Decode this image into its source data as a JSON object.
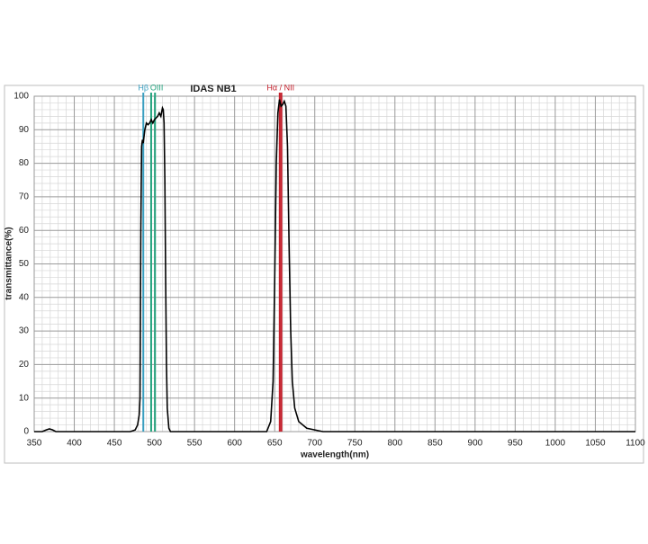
{
  "chart_data": {
    "type": "line",
    "title": "IDAS  NB1",
    "x_label": "wavelength(nm)",
    "y_label": "transmittance(%)",
    "x": [
      350,
      360,
      365,
      369,
      373,
      377,
      400,
      470,
      476,
      479,
      481,
      482,
      483,
      484,
      485,
      486,
      488,
      490,
      492,
      494,
      496,
      498,
      500,
      502,
      504,
      506,
      508,
      510,
      511,
      512,
      513,
      514,
      515,
      516,
      518,
      520,
      600,
      640,
      645,
      648,
      650,
      652,
      654,
      656,
      658,
      660,
      662,
      664,
      666,
      668,
      670,
      672,
      675,
      680,
      690,
      700,
      710,
      1100
    ],
    "values": [
      0,
      0,
      0.5,
      0.8,
      0.5,
      0,
      0,
      0,
      0.5,
      2,
      5,
      10,
      60,
      85,
      87,
      86,
      90,
      92,
      91.5,
      92,
      93,
      92,
      93,
      93.5,
      94,
      95,
      94,
      96.5,
      96,
      92,
      75,
      45,
      20,
      7,
      1,
      0,
      0,
      0,
      3,
      15,
      45,
      80,
      95,
      99,
      97,
      97.5,
      98.5,
      97,
      85,
      55,
      30,
      15,
      7,
      3,
      1,
      0.5,
      0,
      0
    ],
    "color": "#000000",
    "markers": [
      {
        "label": "Hβ",
        "color": "#3a9fc0",
        "x": [
          486.1
        ]
      },
      {
        "label": "OIII",
        "color": "#22a37e",
        "x": [
          495.9,
          500.7
        ]
      },
      {
        "label": "Hα / NII",
        "color": "#c4202c",
        "x": [
          656.3,
          658.4
        ]
      }
    ],
    "xlim": [
      350,
      1100
    ],
    "ylim": [
      0,
      100
    ],
    "xticks": [
      350,
      400,
      450,
      500,
      550,
      600,
      650,
      700,
      750,
      800,
      850,
      900,
      950,
      1000,
      1050,
      1100
    ],
    "yticks": [
      0,
      10,
      20,
      30,
      40,
      50,
      60,
      70,
      80,
      90,
      100
    ],
    "grid": true,
    "minor_grid": true
  }
}
